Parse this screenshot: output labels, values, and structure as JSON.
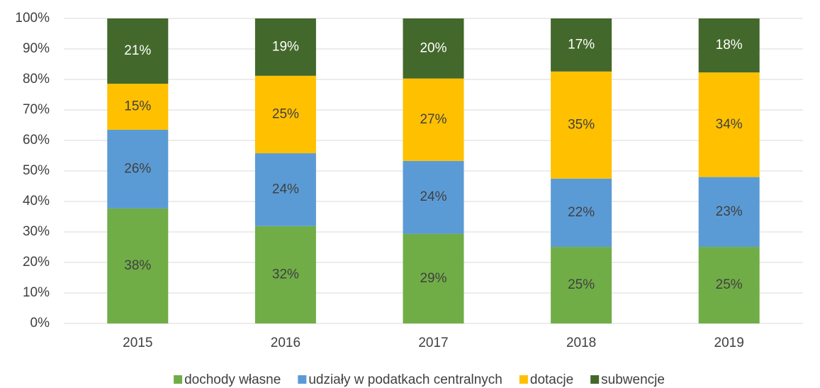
{
  "chart_data": {
    "type": "bar",
    "stacked": true,
    "categories": [
      "2015",
      "2016",
      "2017",
      "2018",
      "2019"
    ],
    "series": [
      {
        "name": "dochody własne",
        "color": "#70ad47",
        "values": [
          37.7,
          31.9,
          29.4,
          25.1,
          25.1
        ],
        "value_labels": [
          "38%",
          "32%",
          "29%",
          "25%",
          "25%"
        ]
      },
      {
        "name": "udziały w podatkach centralnych",
        "color": "#5b9bd5",
        "values": [
          25.8,
          23.9,
          23.9,
          22.4,
          22.9
        ],
        "value_labels": [
          "26%",
          "24%",
          "24%",
          "22%",
          "23%"
        ]
      },
      {
        "name": "dotacje",
        "color": "#ffc000",
        "values": [
          15.1,
          25.4,
          27.0,
          35.1,
          34.3
        ],
        "value_labels": [
          "15%",
          "25%",
          "27%",
          "35%",
          "34%"
        ]
      },
      {
        "name": "subwencje",
        "color": "#43682b",
        "values": [
          21.4,
          18.8,
          19.7,
          17.4,
          17.7
        ],
        "value_labels": [
          "21%",
          "19%",
          "20%",
          "17%",
          "18%"
        ]
      }
    ],
    "ylim": [
      0,
      100
    ],
    "yticks": [
      {
        "value": 0,
        "label": "0%"
      },
      {
        "value": 10,
        "label": "10%"
      },
      {
        "value": 20,
        "label": "20%"
      },
      {
        "value": 30,
        "label": "30%"
      },
      {
        "value": 40,
        "label": "40%"
      },
      {
        "value": 50,
        "label": "50%"
      },
      {
        "value": 60,
        "label": "60%"
      },
      {
        "value": 70,
        "label": "70%"
      },
      {
        "value": 80,
        "label": "80%"
      },
      {
        "value": 90,
        "label": "90%"
      },
      {
        "value": 100,
        "label": "100%"
      }
    ],
    "grid": true,
    "legend": "bottom"
  }
}
